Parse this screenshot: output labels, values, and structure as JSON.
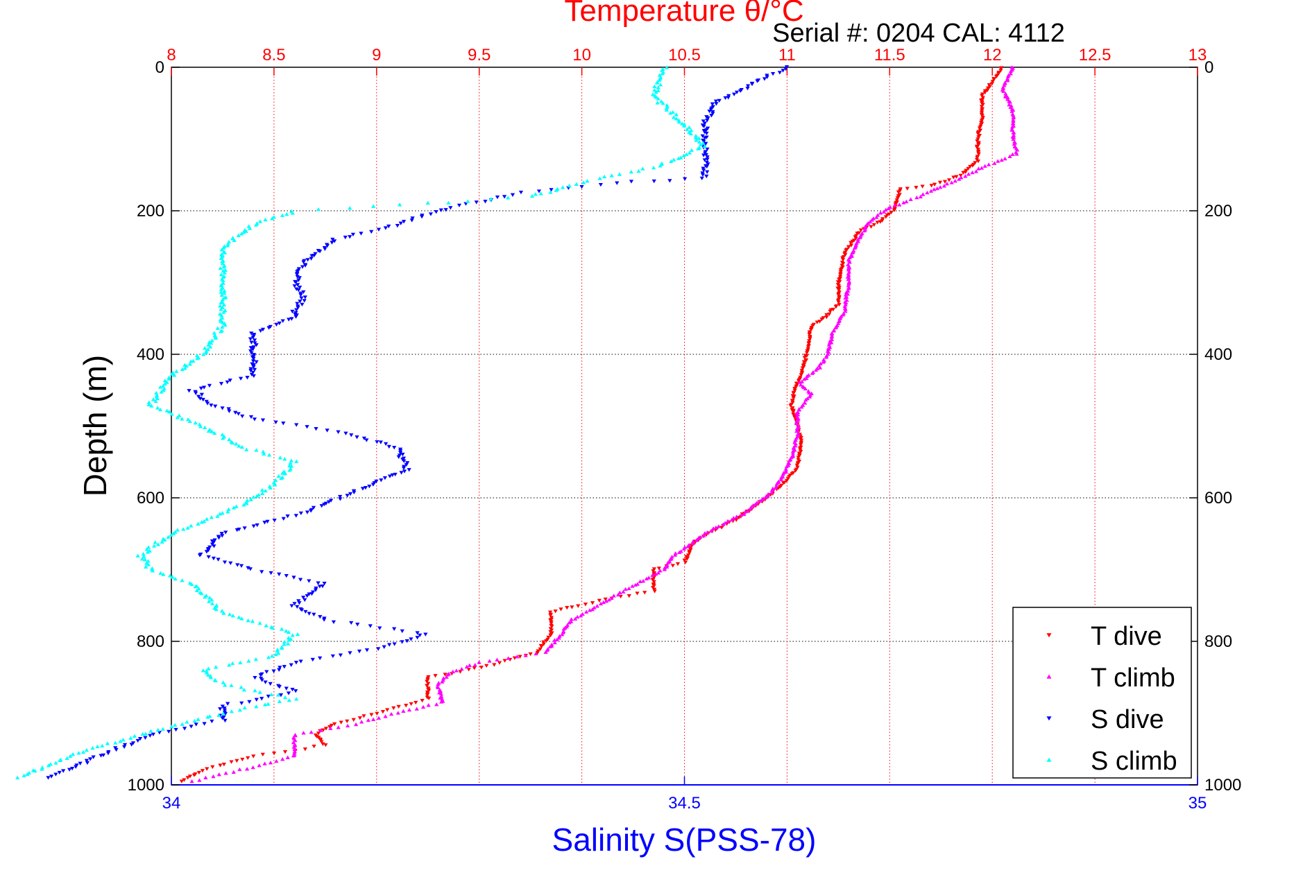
{
  "chart_data": {
    "type": "scatter",
    "title": "Temperature θ/°C",
    "subtitle": "Serial #: 0204  CAL: 4112",
    "ylabel": "Depth (m)",
    "xlabel_bottom": "Salinity S(PSS-78)",
    "ylim": [
      0,
      1000
    ],
    "y_reversed": true,
    "y_ticks": [
      "0",
      "200",
      "400",
      "600",
      "800",
      "1000"
    ],
    "y_tick_values": [
      0,
      200,
      400,
      600,
      800,
      1000
    ],
    "top_axis": {
      "quantity": "temperature",
      "range": [
        8,
        13
      ],
      "tick_values": [
        8,
        8.5,
        9,
        9.5,
        10,
        10.5,
        11,
        11.5,
        12,
        12.5,
        13
      ],
      "tick_labels": [
        "8",
        "8.5",
        "9",
        "9.5",
        "10",
        "10.5",
        "11",
        "11.5",
        "12",
        "12.5",
        "13"
      ],
      "color": "#ff0000"
    },
    "bottom_axis": {
      "quantity": "salinity",
      "range": [
        34,
        35
      ],
      "tick_values": [
        34,
        34.5,
        35
      ],
      "tick_labels": [
        "34",
        "34.5",
        "35"
      ],
      "color": "#0000ff"
    },
    "grid": true,
    "legend_position": "bottom-right",
    "legend": [
      "T dive",
      "T climb",
      "S dive",
      "S climb"
    ],
    "series": [
      {
        "name": "T dive",
        "axis": "top",
        "color": "#ff0000",
        "marker": "triangle-down",
        "points": [
          [
            12.05,
            0
          ],
          [
            12.0,
            20
          ],
          [
            11.95,
            40
          ],
          [
            11.95,
            70
          ],
          [
            11.93,
            100
          ],
          [
            11.93,
            130
          ],
          [
            11.85,
            150
          ],
          [
            11.7,
            165
          ],
          [
            11.55,
            170
          ],
          [
            11.52,
            200
          ],
          [
            11.45,
            215
          ],
          [
            11.35,
            230
          ],
          [
            11.28,
            260
          ],
          [
            11.25,
            300
          ],
          [
            11.25,
            330
          ],
          [
            11.18,
            350
          ],
          [
            11.12,
            360
          ],
          [
            11.1,
            390
          ],
          [
            11.08,
            420
          ],
          [
            11.05,
            440
          ],
          [
            11.02,
            470
          ],
          [
            11.05,
            500
          ],
          [
            11.07,
            520
          ],
          [
            11.05,
            560
          ],
          [
            10.98,
            580
          ],
          [
            10.9,
            600
          ],
          [
            10.75,
            630
          ],
          [
            10.55,
            660
          ],
          [
            10.5,
            690
          ],
          [
            10.35,
            700
          ],
          [
            10.35,
            730
          ],
          [
            10.15,
            740
          ],
          [
            9.98,
            750
          ],
          [
            9.85,
            760
          ],
          [
            9.85,
            790
          ],
          [
            9.78,
            815
          ],
          [
            9.6,
            830
          ],
          [
            9.45,
            840
          ],
          [
            9.25,
            850
          ],
          [
            9.25,
            880
          ],
          [
            9.0,
            900
          ],
          [
            8.8,
            915
          ],
          [
            8.7,
            930
          ],
          [
            8.75,
            945
          ],
          [
            8.4,
            960
          ],
          [
            8.15,
            980
          ],
          [
            8.05,
            995
          ]
        ]
      },
      {
        "name": "T climb",
        "axis": "top",
        "color": "#ff00ff",
        "marker": "triangle-up",
        "points": [
          [
            12.1,
            0
          ],
          [
            12.05,
            30
          ],
          [
            12.1,
            60
          ],
          [
            12.1,
            90
          ],
          [
            12.12,
            120
          ],
          [
            11.95,
            140
          ],
          [
            11.8,
            160
          ],
          [
            11.65,
            180
          ],
          [
            11.5,
            195
          ],
          [
            11.4,
            215
          ],
          [
            11.35,
            240
          ],
          [
            11.3,
            270
          ],
          [
            11.3,
            300
          ],
          [
            11.28,
            340
          ],
          [
            11.22,
            370
          ],
          [
            11.2,
            400
          ],
          [
            11.15,
            420
          ],
          [
            11.06,
            440
          ],
          [
            11.12,
            455
          ],
          [
            11.05,
            480
          ],
          [
            11.05,
            510
          ],
          [
            11.03,
            540
          ],
          [
            10.98,
            570
          ],
          [
            10.93,
            590
          ],
          [
            10.8,
            620
          ],
          [
            10.6,
            650
          ],
          [
            10.45,
            680
          ],
          [
            10.4,
            700
          ],
          [
            10.2,
            730
          ],
          [
            10.05,
            755
          ],
          [
            9.95,
            770
          ],
          [
            9.9,
            790
          ],
          [
            9.82,
            815
          ],
          [
            9.5,
            830
          ],
          [
            9.35,
            845
          ],
          [
            9.3,
            860
          ],
          [
            9.32,
            885
          ],
          [
            9.1,
            900
          ],
          [
            8.9,
            915
          ],
          [
            8.6,
            930
          ],
          [
            8.6,
            960
          ],
          [
            8.4,
            975
          ],
          [
            8.1,
            995
          ]
        ]
      },
      {
        "name": "S dive",
        "axis": "bottom",
        "color": "#0000ff",
        "marker": "triangle-down",
        "points": [
          [
            34.6,
            0
          ],
          [
            34.57,
            20
          ],
          [
            34.53,
            50
          ],
          [
            34.52,
            80
          ],
          [
            34.52,
            110
          ],
          [
            34.52,
            130
          ],
          [
            34.52,
            155
          ],
          [
            34.45,
            160
          ],
          [
            34.34,
            175
          ],
          [
            34.26,
            200
          ],
          [
            34.22,
            220
          ],
          [
            34.16,
            240
          ],
          [
            34.13,
            270
          ],
          [
            34.12,
            300
          ],
          [
            34.13,
            320
          ],
          [
            34.12,
            340
          ],
          [
            34.12,
            350
          ],
          [
            34.08,
            370
          ],
          [
            34.08,
            400
          ],
          [
            34.08,
            430
          ],
          [
            34.02,
            450
          ],
          [
            34.04,
            470
          ],
          [
            34.08,
            490
          ],
          [
            34.17,
            510
          ],
          [
            34.22,
            530
          ],
          [
            34.23,
            560
          ],
          [
            34.18,
            590
          ],
          [
            34.13,
            620
          ],
          [
            34.05,
            650
          ],
          [
            34.03,
            680
          ],
          [
            34.08,
            700
          ],
          [
            34.15,
            720
          ],
          [
            34.12,
            750
          ],
          [
            34.15,
            770
          ],
          [
            34.25,
            790
          ],
          [
            34.2,
            810
          ],
          [
            34.12,
            830
          ],
          [
            34.08,
            850
          ],
          [
            34.12,
            870
          ],
          [
            34.05,
            890
          ],
          [
            34.05,
            910
          ],
          [
            33.98,
            930
          ],
          [
            33.93,
            960
          ],
          [
            33.88,
            990
          ]
        ]
      },
      {
        "name": "S climb",
        "axis": "bottom",
        "color": "#00ffff",
        "marker": "triangle-up",
        "points": [
          [
            34.48,
            0
          ],
          [
            34.47,
            40
          ],
          [
            34.5,
            80
          ],
          [
            34.52,
            110
          ],
          [
            34.47,
            140
          ],
          [
            34.4,
            160
          ],
          [
            34.35,
            180
          ],
          [
            34.25,
            190
          ],
          [
            34.12,
            200
          ],
          [
            34.08,
            220
          ],
          [
            34.05,
            250
          ],
          [
            34.05,
            280
          ],
          [
            34.05,
            320
          ],
          [
            34.05,
            360
          ],
          [
            34.03,
            400
          ],
          [
            34.0,
            430
          ],
          [
            33.98,
            470
          ],
          [
            34.03,
            500
          ],
          [
            34.07,
            530
          ],
          [
            34.12,
            550
          ],
          [
            34.1,
            580
          ],
          [
            34.07,
            610
          ],
          [
            34.0,
            650
          ],
          [
            33.97,
            680
          ],
          [
            33.98,
            700
          ],
          [
            34.02,
            720
          ],
          [
            34.05,
            760
          ],
          [
            34.12,
            790
          ],
          [
            34.1,
            820
          ],
          [
            34.03,
            840
          ],
          [
            34.05,
            860
          ],
          [
            34.12,
            880
          ],
          [
            34.05,
            900
          ],
          [
            33.97,
            930
          ],
          [
            33.9,
            960
          ],
          [
            33.85,
            990
          ]
        ]
      }
    ]
  }
}
